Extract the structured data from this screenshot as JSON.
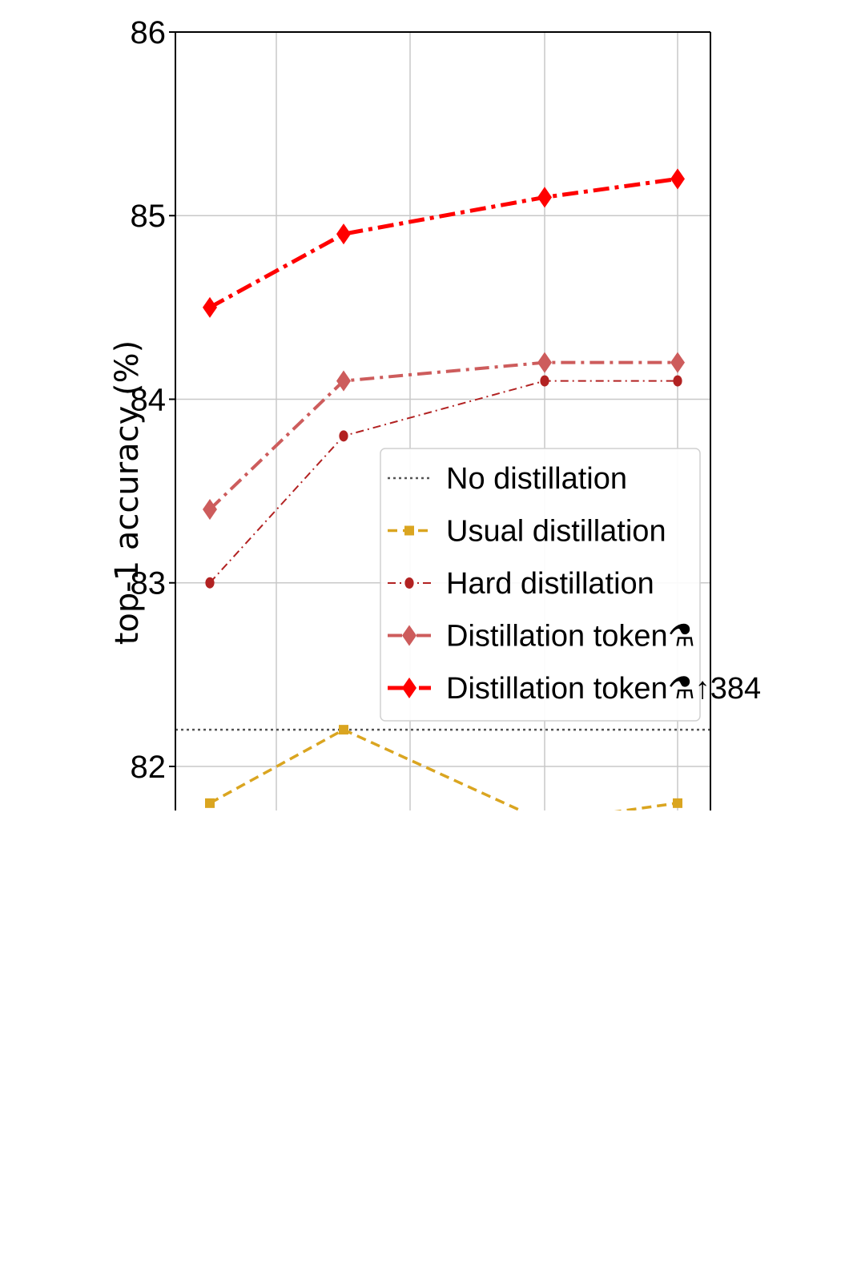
{
  "chart_data": {
    "type": "line",
    "ylabel": "top-1 accuracy (%)",
    "xlabel": "",
    "ylim": [
      81.76,
      86
    ],
    "y_ticks": [
      "82",
      "83",
      "84",
      "85",
      "86"
    ],
    "grid": true,
    "legend_position": "center-right",
    "x": [
      1,
      2,
      3,
      4
    ],
    "series": [
      {
        "name": "No distillation",
        "style": "dotted",
        "color": "#555555",
        "marker": "none",
        "values": [
          82.2,
          82.2,
          82.2,
          82.2
        ],
        "span": "full"
      },
      {
        "name": "Usual distillation",
        "style": "dashed",
        "color": "#DAA520",
        "marker": "square",
        "values": [
          81.8,
          82.2,
          81.7,
          81.8
        ]
      },
      {
        "name": "Hard distillation",
        "style": "dashdot-thin",
        "color": "#B22222",
        "marker": "circle",
        "values": [
          83.0,
          83.8,
          84.1,
          84.1
        ]
      },
      {
        "name": "Distillation token⚗",
        "style": "dashdot",
        "color": "#CD5C5C",
        "marker": "diamond",
        "values": [
          83.4,
          84.1,
          84.2,
          84.2
        ]
      },
      {
        "name": "Distillation token⚗↑384",
        "style": "dashdot-thick",
        "color": "#FF0000",
        "marker": "diamond",
        "values": [
          84.5,
          84.9,
          85.1,
          85.2
        ]
      }
    ]
  }
}
